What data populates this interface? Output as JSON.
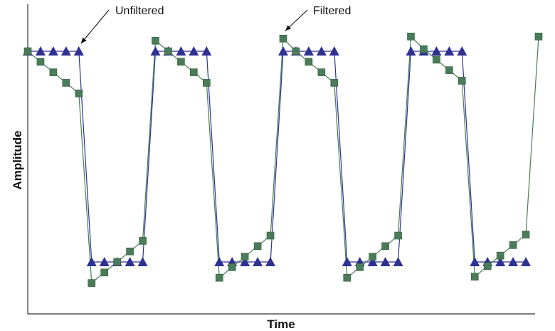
{
  "chart_data": {
    "type": "line",
    "title": "",
    "xlabel": "Time",
    "ylabel": "Amplitude",
    "xlim": [
      0,
      39
    ],
    "ylim": [
      -1.3,
      1.2
    ],
    "grid": false,
    "x_tick_labels": false,
    "y_tick_labels": false,
    "series": [
      {
        "marker": "triangle",
        "color": "#2e3192",
        "x": [
          0,
          1,
          2,
          3,
          4,
          5,
          6,
          7,
          8,
          9,
          10,
          11,
          12,
          13,
          14,
          15,
          16,
          17,
          18,
          19,
          20,
          21,
          22,
          23,
          24,
          25,
          26,
          27,
          28,
          29,
          30,
          31,
          32,
          33,
          34,
          35,
          36,
          37,
          38,
          39
        ],
        "values": [
          1,
          1,
          1,
          1,
          1,
          -1,
          -1,
          -1,
          -1,
          -1,
          1,
          1,
          1,
          1,
          1,
          -1,
          -1,
          -1,
          -1,
          -1,
          1,
          1,
          1,
          1,
          1,
          -1,
          -1,
          -1,
          -1,
          -1,
          1,
          1,
          1,
          1,
          1,
          -1,
          -1,
          -1,
          -1,
          -1
        ]
      },
      {
        "marker": "square",
        "color": "#4a7c59",
        "x": [
          0,
          1,
          2,
          3,
          4,
          5,
          6,
          7,
          8,
          9,
          10,
          11,
          12,
          13,
          14,
          15,
          16,
          17,
          18,
          19,
          20,
          21,
          22,
          23,
          24,
          25,
          26,
          27,
          28,
          29,
          30,
          31,
          32,
          33,
          34,
          35,
          36,
          37,
          38,
          39
        ],
        "values": [
          1.0,
          0.9,
          0.8,
          0.7,
          0.6,
          -1.2,
          -1.1,
          -1.0,
          -0.9,
          -0.8,
          1.1,
          1.0,
          0.9,
          0.8,
          0.7,
          -1.15,
          -1.05,
          -0.95,
          -0.85,
          -0.75,
          1.12,
          1.0,
          0.9,
          0.8,
          0.7,
          -1.15,
          -1.05,
          -0.95,
          -0.85,
          -0.75,
          1.14,
          1.02,
          0.92,
          0.82,
          0.72,
          -1.14,
          -1.04,
          -0.94,
          -0.84,
          -0.74
        ],
        "extra_point": {
          "x": 40,
          "y": 1.14
        }
      }
    ],
    "annotations": [
      {
        "text": "Unfiltered",
        "points_to": {
          "x": 4,
          "y": 1
        }
      },
      {
        "text": "Filtered",
        "points_to": {
          "x": 20,
          "y": 1.12
        }
      }
    ]
  }
}
